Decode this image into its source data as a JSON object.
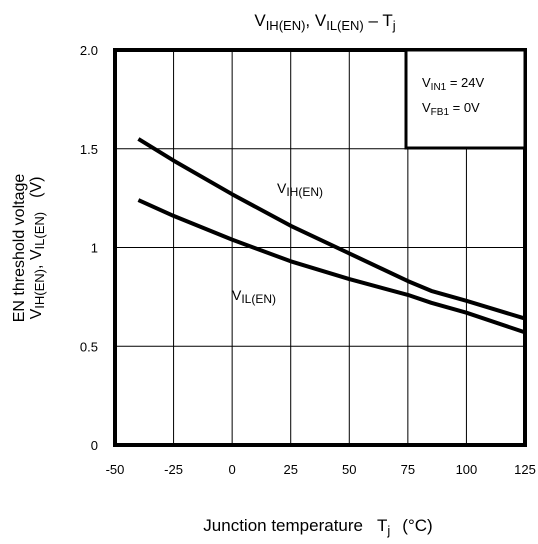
{
  "chart_data": {
    "type": "line",
    "title": {
      "main": "V",
      "sub1": "IH(EN)",
      "mid": ", V",
      "sub2": "IL(EN)",
      "tail": " – T",
      "sub3": "j"
    },
    "xlabel": {
      "main": "Junction temperature",
      "sym": "T",
      "sub": "j",
      "unit": "(°C)"
    },
    "ylabel": {
      "line1": "EN threshold voltage",
      "v1": "V",
      "sub1": "IH(EN)",
      "mid": ", V",
      "sub2": "IL(EN)",
      "unit": "(V)"
    },
    "xlim": [
      -50,
      125
    ],
    "ylim": [
      0,
      2.0
    ],
    "x_ticks": [
      -50,
      -25,
      0,
      25,
      50,
      75,
      100,
      125
    ],
    "x_tick_labels": [
      "-50",
      "-25",
      "0",
      "25",
      "50",
      "75",
      "100",
      "125"
    ],
    "y_ticks": [
      0,
      0.5,
      1,
      1.5,
      2.0
    ],
    "y_tick_labels": [
      "0",
      "0.5",
      "1",
      "1.5",
      "2.0"
    ],
    "grid": true,
    "series": [
      {
        "name": "VIH(EN)",
        "label_main": "V",
        "label_sub": "IH(EN)",
        "x": [
          -40,
          -25,
          0,
          25,
          50,
          75,
          85,
          100,
          125
        ],
        "y": [
          1.55,
          1.44,
          1.27,
          1.11,
          0.97,
          0.83,
          0.78,
          0.73,
          0.64
        ]
      },
      {
        "name": "VIL(EN)",
        "label_main": "V",
        "label_sub": "IL(EN)",
        "x": [
          -40,
          -25,
          0,
          25,
          50,
          75,
          85,
          100,
          125
        ],
        "y": [
          1.24,
          1.16,
          1.04,
          0.93,
          0.84,
          0.76,
          0.72,
          0.67,
          0.57
        ]
      }
    ],
    "conditions": [
      {
        "main": "V",
        "sub": "IN1",
        "value": " = 24V"
      },
      {
        "main": "V",
        "sub": "FB1",
        "value": " = 0V"
      }
    ]
  }
}
